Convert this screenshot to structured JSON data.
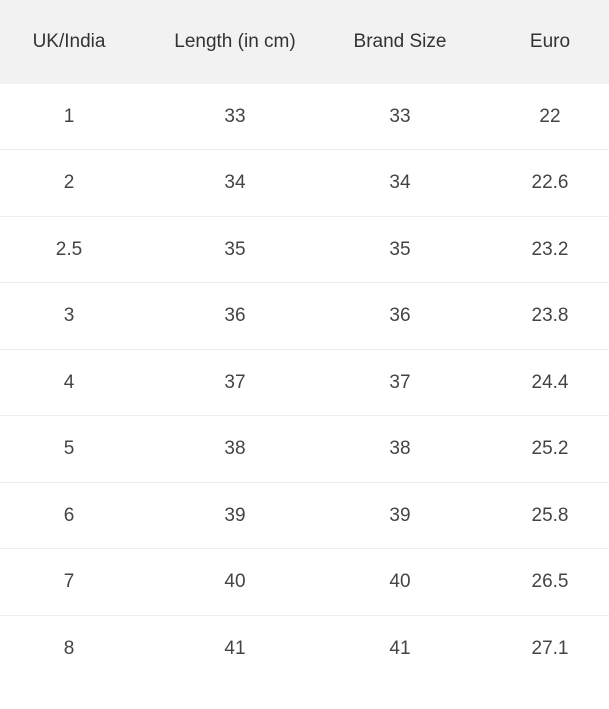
{
  "table": {
    "header": [
      "UK/India",
      "Length (in cm)",
      "Brand Size",
      "Euro"
    ],
    "rows": [
      [
        "1",
        "33",
        "33",
        "22"
      ],
      [
        "2",
        "34",
        "34",
        "22.6"
      ],
      [
        "2.5",
        "35",
        "35",
        "23.2"
      ],
      [
        "3",
        "36",
        "36",
        "23.8"
      ],
      [
        "4",
        "37",
        "37",
        "24.4"
      ],
      [
        "5",
        "38",
        "38",
        "25.2"
      ],
      [
        "6",
        "39",
        "39",
        "25.8"
      ],
      [
        "7",
        "40",
        "40",
        "26.5"
      ],
      [
        "8",
        "41",
        "41",
        "27.1"
      ]
    ]
  }
}
